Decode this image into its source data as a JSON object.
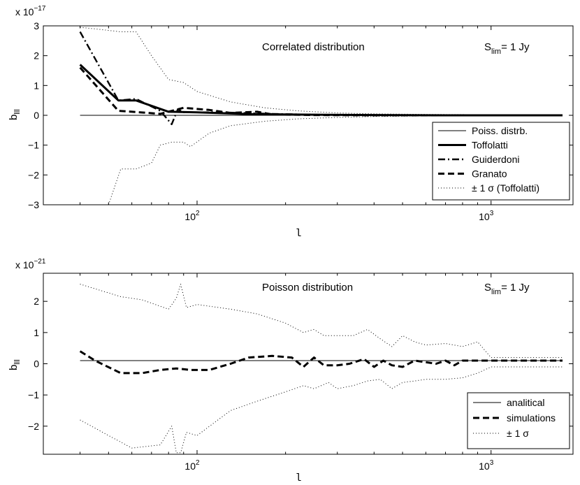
{
  "chart_data": [
    {
      "type": "line",
      "title": "Correlated distribution",
      "annotation": {
        "prefix": "S",
        "sub": "lim",
        "suffix": "= 1 Jy"
      },
      "xlabel": "l",
      "ylabel": {
        "base": "b",
        "sub": "lll"
      },
      "xscale": "log",
      "xlim": [
        30,
        1900
      ],
      "ylim": [
        -3,
        3
      ],
      "y_exponent": "x 10",
      "y_exponent_power": "−17",
      "yticks": [
        {
          "v": -3,
          "label": "−3"
        },
        {
          "v": -2,
          "label": "−2"
        },
        {
          "v": -1,
          "label": "−1"
        },
        {
          "v": 0,
          "label": "0"
        },
        {
          "v": 1,
          "label": "1"
        },
        {
          "v": 2,
          "label": "2"
        },
        {
          "v": 3,
          "label": "3"
        }
      ],
      "xticks": [
        {
          "v": 100,
          "base": "10",
          "exp": "2"
        },
        {
          "v": 1000,
          "base": "10",
          "exp": "3"
        }
      ],
      "legend_position": "bottom-right",
      "legend": [
        {
          "label": "Poiss. distrb.",
          "style": "thin"
        },
        {
          "label": "Toffolatti",
          "style": "thick"
        },
        {
          "label": "Guiderdoni",
          "style": "dashdot"
        },
        {
          "label": "Granato",
          "style": "dashed"
        },
        {
          "label": "± 1 σ (Toffolatti)",
          "style": "dotted"
        }
      ],
      "series": [
        {
          "name": "Poiss. distrb.",
          "style": "thin",
          "x": [
            40,
            1750
          ],
          "y": [
            0,
            0
          ]
        },
        {
          "name": "Toffolatti",
          "style": "thick",
          "x": [
            40,
            54,
            62,
            80,
            100,
            150,
            250,
            400,
            700,
            1000,
            1750
          ],
          "y": [
            1.7,
            0.5,
            0.5,
            0.12,
            0.1,
            0.04,
            0.02,
            0.01,
            0.0,
            0.0,
            0.0
          ]
        },
        {
          "name": "Guiderdoni",
          "style": "dashdot",
          "x": [
            40,
            54,
            62,
            75,
            82,
            86,
            90,
            120,
            180,
            250,
            400,
            700,
            1750
          ],
          "y": [
            2.8,
            0.5,
            0.55,
            0.15,
            -0.3,
            0.2,
            0.1,
            0.1,
            0.05,
            0.02,
            0.01,
            0.0,
            0.0
          ]
        },
        {
          "name": "Granato",
          "style": "dashed",
          "x": [
            40,
            54,
            60,
            75,
            90,
            110,
            130,
            160,
            180,
            250,
            400,
            700,
            1750
          ],
          "y": [
            1.6,
            0.15,
            0.12,
            0.05,
            0.25,
            0.18,
            0.08,
            0.12,
            0.03,
            0.01,
            0.0,
            0.0,
            0.0
          ]
        },
        {
          "name": "+1 σ (Toffolatti)",
          "style": "dotted",
          "x": [
            40,
            45,
            55,
            62,
            70,
            80,
            90,
            100,
            130,
            170,
            220,
            300,
            400,
            600,
            1000,
            1750
          ],
          "y": [
            2.95,
            2.9,
            2.8,
            2.8,
            2.0,
            1.2,
            1.1,
            0.8,
            0.45,
            0.25,
            0.15,
            0.08,
            0.05,
            0.03,
            0.02,
            0.01
          ]
        },
        {
          "name": "-1 σ (Toffolatti)",
          "style": "dotted",
          "x": [
            50,
            55,
            62,
            70,
            75,
            82,
            90,
            95,
            110,
            130,
            170,
            220,
            300,
            400,
            600,
            1000,
            1750
          ],
          "y": [
            -3.0,
            -1.8,
            -1.8,
            -1.6,
            -1.0,
            -0.9,
            -0.9,
            -1.05,
            -0.6,
            -0.35,
            -0.2,
            -0.12,
            -0.07,
            -0.04,
            -0.02,
            -0.01,
            -0.01
          ]
        }
      ]
    },
    {
      "type": "line",
      "title": "Poisson distribution",
      "annotation": {
        "prefix": "S",
        "sub": "lim",
        "suffix": "= 1 Jy"
      },
      "xlabel": "l",
      "ylabel": {
        "base": "b",
        "sub": "lll"
      },
      "xscale": "log",
      "xlim": [
        30,
        1900
      ],
      "ylim": [
        -2.9,
        2.9
      ],
      "y_exponent": "x 10",
      "y_exponent_power": "−21",
      "yticks": [
        {
          "v": -2,
          "label": "−2"
        },
        {
          "v": -1,
          "label": "−1"
        },
        {
          "v": 0,
          "label": "0"
        },
        {
          "v": 1,
          "label": "1"
        },
        {
          "v": 2,
          "label": "2"
        }
      ],
      "xticks": [
        {
          "v": 100,
          "base": "10",
          "exp": "2"
        },
        {
          "v": 1000,
          "base": "10",
          "exp": "3"
        }
      ],
      "legend_position": "bottom-right",
      "legend": [
        {
          "label": "analitical",
          "style": "thin"
        },
        {
          "label": "simulations",
          "style": "dashed"
        },
        {
          "label": "± 1 σ",
          "style": "dotted"
        }
      ],
      "series": [
        {
          "name": "analitical",
          "style": "thin",
          "x": [
            40,
            1750
          ],
          "y": [
            0.1,
            0.1
          ]
        },
        {
          "name": "simulations",
          "style": "dashed",
          "x": [
            40,
            45,
            55,
            65,
            75,
            85,
            95,
            110,
            130,
            150,
            180,
            210,
            230,
            250,
            270,
            300,
            330,
            370,
            400,
            430,
            460,
            500,
            550,
            600,
            650,
            700,
            750,
            800,
            900,
            1000,
            1200,
            1500,
            1750
          ],
          "y": [
            0.4,
            0.1,
            -0.3,
            -0.3,
            -0.2,
            -0.15,
            -0.2,
            -0.2,
            0.0,
            0.2,
            0.25,
            0.2,
            -0.1,
            0.2,
            -0.05,
            -0.05,
            0.0,
            0.15,
            -0.1,
            0.1,
            -0.05,
            -0.1,
            0.1,
            0.05,
            0.0,
            0.1,
            -0.05,
            0.1,
            0.1,
            0.1,
            0.1,
            0.1,
            0.1
          ]
        },
        {
          "name": "+1 σ",
          "style": "dotted",
          "x": [
            40,
            55,
            65,
            80,
            85,
            88,
            92,
            100,
            130,
            160,
            200,
            230,
            250,
            270,
            300,
            340,
            380,
            420,
            460,
            500,
            550,
            600,
            700,
            800,
            900,
            1000,
            1200,
            1500,
            1750
          ],
          "y": [
            2.55,
            2.15,
            2.05,
            1.75,
            2.1,
            2.55,
            1.8,
            1.9,
            1.75,
            1.6,
            1.3,
            1.0,
            1.1,
            0.9,
            0.9,
            0.9,
            1.1,
            0.8,
            0.55,
            0.9,
            0.7,
            0.6,
            0.65,
            0.55,
            0.7,
            0.2,
            0.2,
            0.2,
            0.2
          ]
        },
        {
          "name": "-1 σ",
          "style": "dotted",
          "x": [
            40,
            50,
            60,
            75,
            82,
            85,
            88,
            92,
            100,
            130,
            160,
            200,
            230,
            250,
            280,
            300,
            340,
            380,
            420,
            460,
            500,
            550,
            600,
            700,
            800,
            900,
            1000,
            1200,
            1500,
            1750
          ],
          "y": [
            -1.8,
            -2.3,
            -2.7,
            -2.6,
            -2.0,
            -2.85,
            -2.85,
            -2.2,
            -2.3,
            -1.5,
            -1.2,
            -0.9,
            -0.7,
            -0.8,
            -0.6,
            -0.8,
            -0.7,
            -0.55,
            -0.5,
            -0.8,
            -0.6,
            -0.55,
            -0.5,
            -0.5,
            -0.45,
            -0.3,
            -0.1,
            -0.1,
            -0.1,
            -0.1
          ]
        }
      ]
    }
  ]
}
